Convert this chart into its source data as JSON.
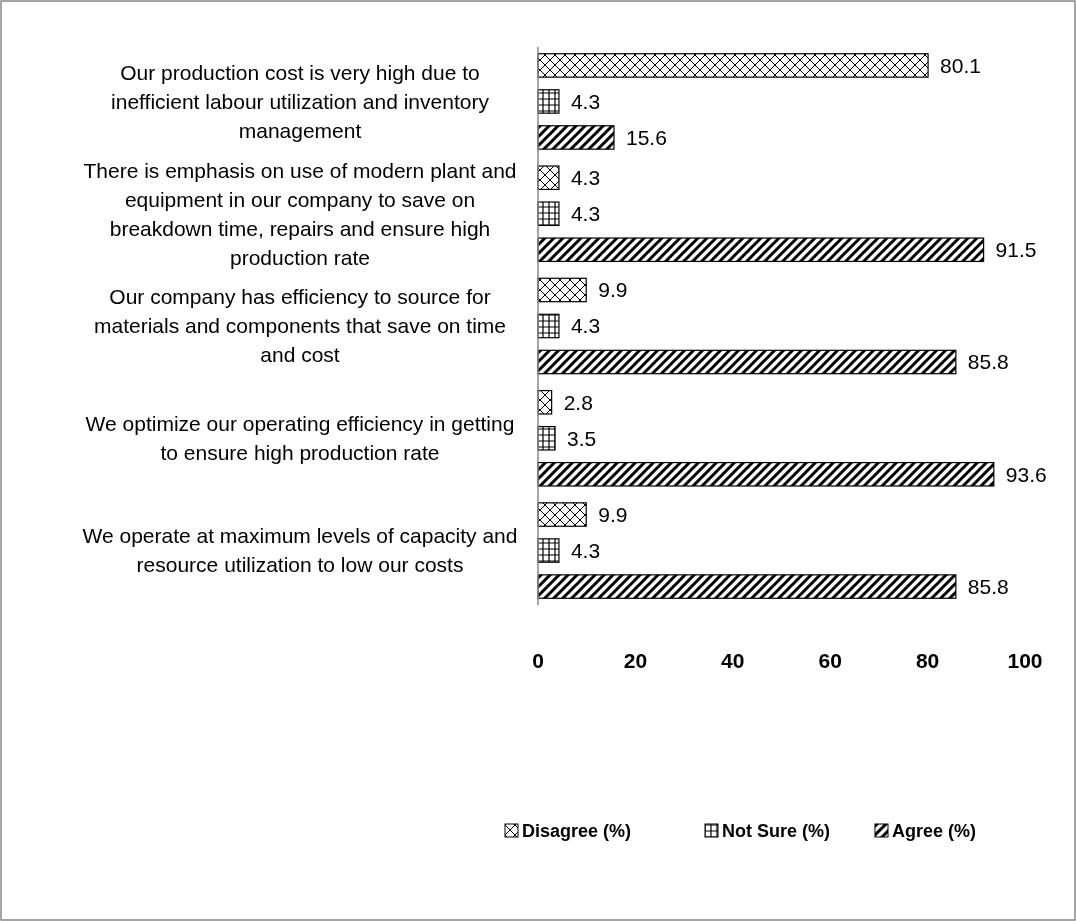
{
  "chart_data": {
    "type": "bar",
    "orientation": "horizontal",
    "categories": [
      "Our production cost is very high due to inefficient labour utilization and inventory management",
      "There is emphasis on use of modern plant and equipment in our company to save on breakdown time, repairs and ensure high production rate",
      "Our company has efficiency to source for materials and components that save on time and cost",
      "We optimize our operating efficiency in getting to ensure high production rate",
      "We operate at maximum levels of capacity and resource utilization to low our costs"
    ],
    "series": [
      {
        "name": "Disagree (%)",
        "color": "#000000",
        "values": [
          80.1,
          4.3,
          9.9,
          2.8,
          9.9
        ]
      },
      {
        "name": "Not Sure (%)",
        "color": "#000000",
        "values": [
          4.3,
          4.3,
          4.3,
          3.5,
          4.3
        ]
      },
      {
        "name": "Agree (%)",
        "color": "#000000",
        "values": [
          15.6,
          91.5,
          85.8,
          93.6,
          85.8
        ]
      }
    ],
    "xlim": [
      0,
      100
    ],
    "xticks": [
      0,
      20,
      40,
      60,
      80,
      100
    ],
    "data_labels": true,
    "legend": "bottom"
  }
}
